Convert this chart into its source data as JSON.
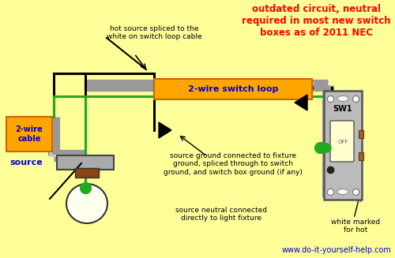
{
  "bg_color": "#FFFF99",
  "title_text": "outdated circuit, neutral\nrequired in most new switch\nboxes as of 2011 NEC",
  "title_color": "#FF0000",
  "website": "www.do-it-yourself-help.com",
  "website_color": "#0000CC",
  "label_2wire_cable": "2-wire\ncable",
  "label_source": "source",
  "label_switch_loop": "2-wire switch loop",
  "label_hot": "hot source spliced to the\nwhite on switch loop cable",
  "label_ground": "source ground connected to fixture\nground, spliced through to switch\nground, and switch box ground (if any)",
  "label_neutral": "source neutral connected\ndirectly to light fixture",
  "label_white_marked": "white marked\nfor hot",
  "label_sw1": "SW1",
  "orange_color": "#FFA500",
  "blue_color": "#0000CC",
  "wire_black": "#000000",
  "wire_white": "#CCCCCC",
  "wire_green": "#22AA22",
  "wire_gray": "#999999",
  "switch_body_color": "#BBBBBB",
  "fixture_body_color": "#AAAAAA",
  "fixture_base_color": "#8B4513",
  "fixture_globe_color": "#FFFFF0"
}
